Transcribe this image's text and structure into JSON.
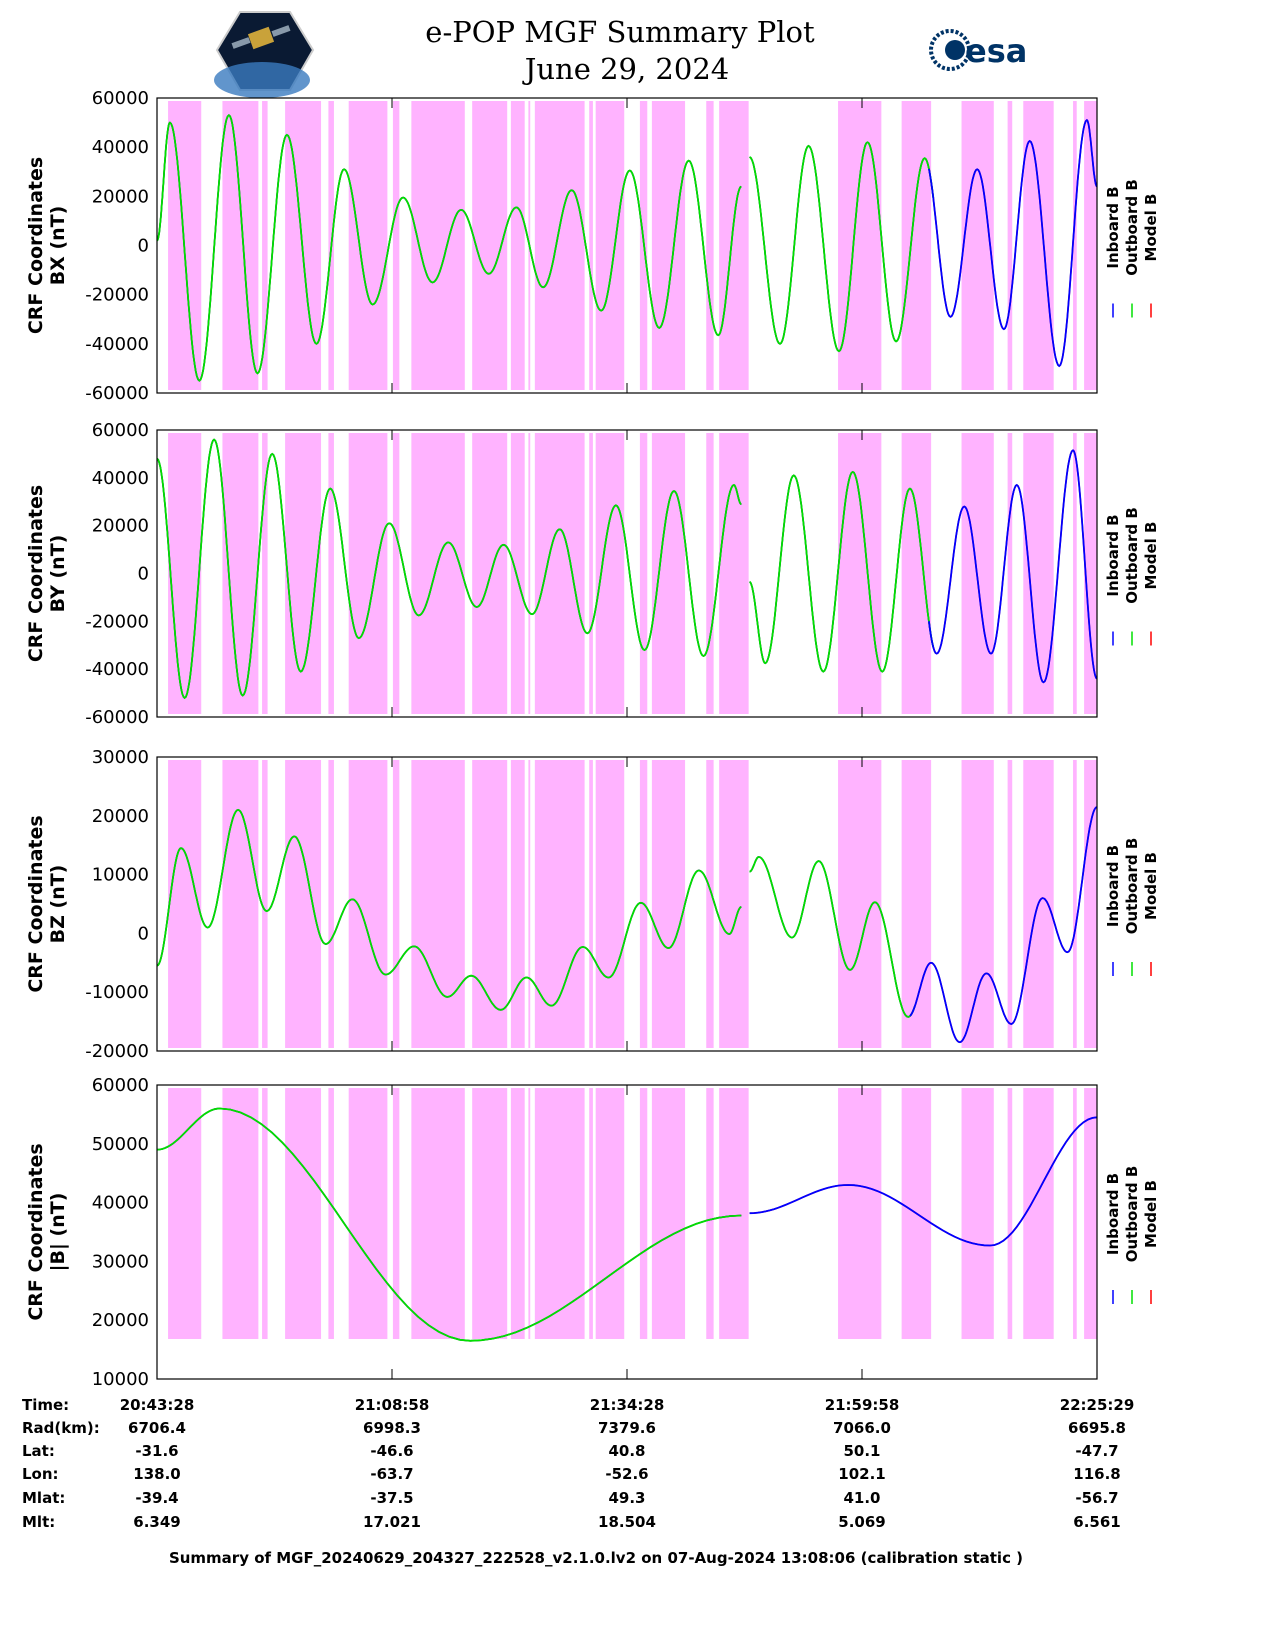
{
  "header": {
    "title": "e-POP MGF Summary Plot",
    "date": "June 29, 2024",
    "logo_left": "CASSIOPE e-POP",
    "logo_right": "esa"
  },
  "chart_data": {
    "type": "line",
    "time_axis": {
      "start": "20:43:28",
      "end": "22:25:29",
      "units": "minutes from start",
      "range": [
        0,
        102
      ],
      "ticks_min": [
        25.5,
        51,
        76.5
      ]
    },
    "legend": [
      {
        "name": "Inboard B",
        "color": "#0000ff"
      },
      {
        "name": "Outboard B",
        "color": "#00e000"
      },
      {
        "name": "Model B",
        "color": "#ff0000"
      }
    ],
    "shading_color": "#ffb3ff",
    "shaded_intervals_min": [
      [
        1.2,
        4.8
      ],
      [
        7.1,
        11.0
      ],
      [
        11.4,
        12.0
      ],
      [
        13.9,
        17.8
      ],
      [
        18.6,
        19.2
      ],
      [
        20.8,
        25.0
      ],
      [
        25.6,
        26.3
      ],
      [
        27.6,
        33.4
      ],
      [
        34.2,
        38.0
      ],
      [
        38.4,
        39.9
      ],
      [
        40.3,
        40.5
      ],
      [
        41.0,
        46.4
      ],
      [
        46.9,
        47.3
      ],
      [
        47.6,
        50.7
      ],
      [
        52.4,
        53.2
      ],
      [
        53.7,
        57.3
      ],
      [
        59.6,
        60.4
      ],
      [
        61.0,
        64.2
      ],
      [
        73.9,
        78.6
      ],
      [
        80.8,
        84.0
      ],
      [
        87.3,
        90.8
      ],
      [
        92.3,
        92.8
      ],
      [
        94.0,
        97.3
      ],
      [
        99.4,
        99.8
      ],
      [
        100.6,
        102.0
      ]
    ],
    "panels": [
      {
        "ylabel1": "CRF Coordinates",
        "ylabel2": "BX (nT)",
        "ylim": [
          -60000,
          60000
        ],
        "yticks": [
          "60000",
          "40000",
          "20000",
          "0",
          "-20000",
          "-40000",
          "-60000"
        ],
        "blue_from": 84,
        "segments": [
          [
            [
              0,
              2000
            ],
            [
              1.4,
              50000
            ],
            [
              4.6,
              -55000
            ],
            [
              7.8,
              53000
            ],
            [
              10.9,
              -52000
            ],
            [
              14.1,
              45000
            ],
            [
              17.3,
              -40000
            ],
            [
              20.3,
              31000
            ],
            [
              23.4,
              -24000
            ],
            [
              26.7,
              19500
            ],
            [
              29.9,
              -15000
            ],
            [
              33.0,
              14500
            ],
            [
              36.0,
              -11500
            ],
            [
              39.0,
              15500
            ],
            [
              41.9,
              -17000
            ],
            [
              45.0,
              22500
            ],
            [
              48.2,
              -26500
            ],
            [
              51.3,
              30500
            ],
            [
              54.5,
              -33500
            ],
            [
              57.7,
              34500
            ],
            [
              60.9,
              -36500
            ],
            [
              63.4,
              24000
            ]
          ],
          [
            [
              64.3,
              36000
            ],
            [
              67.6,
              -40000
            ],
            [
              70.7,
              40500
            ],
            [
              74.0,
              -43000
            ],
            [
              77.1,
              42000
            ],
            [
              80.2,
              -39000
            ],
            [
              83.3,
              35500
            ],
            [
              86.1,
              -29000
            ],
            [
              89.0,
              31000
            ],
            [
              91.9,
              -34000
            ],
            [
              94.7,
              42500
            ],
            [
              97.9,
              -49000
            ],
            [
              100.9,
              51000
            ],
            [
              102,
              24000
            ]
          ]
        ]
      },
      {
        "ylabel1": "CRF Coordinates",
        "ylabel2": "BY (nT)",
        "ylim": [
          -60000,
          60000
        ],
        "yticks": [
          "60000",
          "40000",
          "20000",
          "0",
          "-20000",
          "-40000",
          "-60000"
        ],
        "blue_from": 84,
        "segments": [
          [
            [
              0,
              48000
            ],
            [
              3.0,
              -52000
            ],
            [
              6.2,
              56000
            ],
            [
              9.3,
              -51000
            ],
            [
              12.5,
              50000
            ],
            [
              15.6,
              -41000
            ],
            [
              18.8,
              35500
            ],
            [
              21.9,
              -27000
            ],
            [
              25.2,
              21000
            ],
            [
              28.4,
              -17500
            ],
            [
              31.6,
              13000
            ],
            [
              34.7,
              -14000
            ],
            [
              37.6,
              12000
            ],
            [
              40.7,
              -17000
            ],
            [
              43.7,
              18500
            ],
            [
              46.7,
              -25000
            ],
            [
              49.8,
              28500
            ],
            [
              52.9,
              -32000
            ],
            [
              56.1,
              34500
            ],
            [
              59.3,
              -34500
            ],
            [
              62.6,
              37000
            ],
            [
              63.4,
              29000
            ]
          ],
          [
            [
              64.3,
              -3500
            ],
            [
              66.0,
              -37500
            ],
            [
              69.1,
              41000
            ],
            [
              72.3,
              -41000
            ],
            [
              75.5,
              42500
            ],
            [
              78.7,
              -41000
            ],
            [
              81.7,
              35500
            ],
            [
              84.6,
              -33500
            ],
            [
              87.6,
              28000
            ],
            [
              90.5,
              -33500
            ],
            [
              93.3,
              37000
            ],
            [
              96.2,
              -45500
            ],
            [
              99.4,
              51500
            ],
            [
              102,
              -44000
            ]
          ]
        ]
      },
      {
        "ylabel1": "CRF Coordinates",
        "ylabel2": "BZ (nT)",
        "ylim": [
          -20000,
          30000
        ],
        "yticks": [
          "30000",
          "20000",
          "10000",
          "0",
          "-10000",
          "-20000"
        ],
        "blue_from": 82,
        "segments": [
          [
            [
              0,
              -5500
            ],
            [
              2.6,
              14500
            ],
            [
              5.5,
              1000
            ],
            [
              8.8,
              21000
            ],
            [
              11.9,
              3800
            ],
            [
              14.9,
              16500
            ],
            [
              18.3,
              -1800
            ],
            [
              21.2,
              5800
            ],
            [
              24.8,
              -7000
            ],
            [
              27.9,
              -2200
            ],
            [
              31.5,
              -10800
            ],
            [
              34.1,
              -7200
            ],
            [
              37.3,
              -13000
            ],
            [
              40.1,
              -7500
            ],
            [
              42.8,
              -12300
            ],
            [
              46.2,
              -2300
            ],
            [
              49.0,
              -7500
            ],
            [
              52.5,
              5200
            ],
            [
              55.5,
              -2500
            ],
            [
              58.8,
              10700
            ],
            [
              62.1,
              -100
            ],
            [
              63.4,
              4500
            ]
          ],
          [
            [
              64.3,
              10500
            ],
            [
              65.3,
              13000
            ],
            [
              68.9,
              -700
            ],
            [
              71.8,
              12300
            ],
            [
              75.2,
              -6200
            ],
            [
              77.9,
              5300
            ],
            [
              81.5,
              -14200
            ],
            [
              84.0,
              -5000
            ],
            [
              87.1,
              -18500
            ],
            [
              90.0,
              -6800
            ],
            [
              92.7,
              -15400
            ],
            [
              96.1,
              6000
            ],
            [
              98.8,
              -3200
            ],
            [
              102,
              21500
            ]
          ]
        ]
      },
      {
        "ylabel1": "CRF Coordinates",
        "ylabel2": "|B| (nT)",
        "ylim": [
          10000,
          60000
        ],
        "yticks": [
          "60000",
          "50000",
          "40000",
          "30000",
          "20000",
          "10000"
        ],
        "blue_from": 64,
        "segments": [
          [
            [
              0,
              49000
            ],
            [
              6.8,
              56000
            ],
            [
              34.0,
              16500
            ],
            [
              63.4,
              37800
            ]
          ],
          [
            [
              64.3,
              38200
            ],
            [
              75.0,
              43000
            ],
            [
              90.4,
              32700
            ],
            [
              102,
              54500
            ]
          ]
        ]
      }
    ]
  },
  "table": {
    "labels": [
      "Time:",
      "Rad(km):",
      "Lat:",
      "Lon:",
      "Mlat:",
      "Mlt:"
    ],
    "columns": [
      [
        "20:43:28",
        "6706.4",
        "-31.6",
        "138.0",
        "-39.4",
        "6.349"
      ],
      [
        "21:08:58",
        "6998.3",
        "-46.6",
        "-63.7",
        "-37.5",
        "17.021"
      ],
      [
        "21:34:28",
        "7379.6",
        "40.8",
        "-52.6",
        "49.3",
        "18.504"
      ],
      [
        "21:59:58",
        "7066.0",
        "50.1",
        "102.1",
        "41.0",
        "5.069"
      ],
      [
        "22:25:29",
        "6695.8",
        "-47.7",
        "116.8",
        "-56.7",
        "6.561"
      ]
    ]
  },
  "footer": "Summary of MGF_20240629_204327_222528_v2.1.0.lv2 on 07-Aug-2024 13:08:06 (calibration static )"
}
